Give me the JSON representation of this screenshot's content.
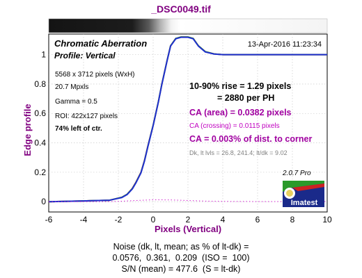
{
  "file_title": "_DSC0049.tif",
  "header": {
    "title": "Chromatic Aberration",
    "profile": "Profile: Vertical",
    "timestamp": "13-Apr-2016 11:23:34"
  },
  "info_lines": [
    "5568 x 3712 pixels (WxH)",
    "20.7 Mpxls",
    "Gamma = 0.5",
    "ROI: 422x127 pixels",
    "74% left of ctr."
  ],
  "results": {
    "rise_line1": "10-90% rise = 1.29 pixels",
    "rise_line2": "= 2880 per PH",
    "ca_area": "CA (area) = 0.0382 pixels",
    "ca_crossing": "CA (crossing) = 0.0115 pixels",
    "ca_percent": "CA = 0.003% of dist. to corner",
    "levels": "Dk, lt lvls = 26.8, 241.4;  lt/dk = 9.02"
  },
  "version": "2.0.7  Pro",
  "logo_text": "Imatest",
  "noise": {
    "line1": "Noise (dk, lt, mean; as % of lt-dk) =",
    "line2": "0.0576,  0.361,  0.209  (ISO =  100)",
    "line3": "S/N (mean) = 477.6  (S = lt-dk)"
  },
  "chart_data": {
    "type": "line",
    "title": "_DSC0049.tif",
    "xlabel": "Pixels (Vertical)",
    "ylabel": "Edge profile",
    "xlim": [
      -6,
      10
    ],
    "ylim": [
      -0.07,
      1.14
    ],
    "x_ticks": [
      -6,
      -4,
      -2,
      0,
      2,
      4,
      6,
      8,
      10
    ],
    "y_ticks": [
      0,
      0.2,
      0.4,
      0.6,
      0.8,
      1
    ],
    "grid": true,
    "series": [
      {
        "color": "#d02020",
        "x": [
          -6,
          -4,
          -2.5,
          -1.8,
          -1.5,
          -1.2,
          -1,
          -0.7,
          -0.5,
          -0.3,
          0,
          0.3,
          0.5,
          0.8,
          1,
          1.3,
          1.6,
          2,
          2.3,
          2.6,
          3,
          3.5,
          4,
          6,
          8,
          10
        ],
        "y": [
          0,
          0.005,
          0.01,
          0.03,
          0.05,
          0.09,
          0.13,
          0.2,
          0.28,
          0.38,
          0.52,
          0.68,
          0.8,
          0.96,
          1.06,
          1.11,
          1.12,
          1.12,
          1.11,
          1.06,
          1.02,
          1.005,
          1.0,
          1.0,
          1.0,
          1.0
        ]
      },
      {
        "color": "#20a020",
        "x": [
          -6,
          -4,
          -2.5,
          -1.8,
          -1.5,
          -1.2,
          -1,
          -0.7,
          -0.5,
          -0.3,
          0,
          0.3,
          0.5,
          0.8,
          1,
          1.3,
          1.6,
          2,
          2.3,
          2.6,
          3,
          3.5,
          4,
          6,
          8,
          10
        ],
        "y": [
          0,
          0.005,
          0.01,
          0.03,
          0.05,
          0.088,
          0.128,
          0.198,
          0.278,
          0.378,
          0.52,
          0.68,
          0.8,
          0.96,
          1.06,
          1.11,
          1.12,
          1.12,
          1.11,
          1.06,
          1.02,
          1.005,
          1.0,
          1.0,
          1.0,
          1.0
        ]
      },
      {
        "color": "#2030d0",
        "x": [
          -6,
          -4,
          -2.5,
          -1.8,
          -1.5,
          -1.2,
          -1,
          -0.7,
          -0.5,
          -0.3,
          0,
          0.3,
          0.5,
          0.8,
          1,
          1.3,
          1.6,
          2,
          2.3,
          2.6,
          3,
          3.5,
          4,
          6,
          8,
          10
        ],
        "y": [
          0,
          0.005,
          0.01,
          0.028,
          0.048,
          0.086,
          0.126,
          0.196,
          0.276,
          0.376,
          0.518,
          0.678,
          0.798,
          0.958,
          1.058,
          1.108,
          1.118,
          1.118,
          1.108,
          1.058,
          1.018,
          1.004,
          1.0,
          1.0,
          1.0,
          1.0
        ]
      },
      {
        "color": "#d020d0",
        "dashed": true,
        "x": [
          -6,
          -3,
          -2,
          -1,
          0,
          1,
          2,
          3,
          4,
          6,
          8,
          10
        ],
        "y": [
          0,
          0,
          0.002,
          0.008,
          0.013,
          0.012,
          0.008,
          0.004,
          0.002,
          0.001,
          0.001,
          0.001
        ]
      }
    ]
  },
  "colors": {
    "title": "#800080",
    "axis_label": "#800080",
    "ca_text": "#a000a0",
    "ca_small": "#c000c0",
    "levels_text": "#808080",
    "grid": "#c0c0c0"
  }
}
